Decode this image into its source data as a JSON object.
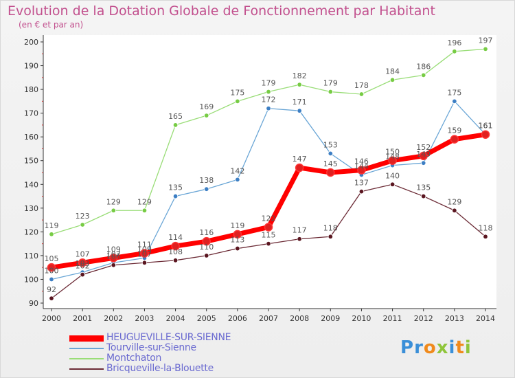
{
  "header": {
    "title": "Evolution de la Dotation Globale de Fonctionnement par Habitant",
    "subtitle": "(en € et par an)"
  },
  "brand": {
    "letters": [
      {
        "ch": "P",
        "color": "#3a8fd8"
      },
      {
        "ch": "r",
        "color": "#3a8fd8"
      },
      {
        "ch": "o",
        "color": "#f08a1c"
      },
      {
        "ch": "x",
        "color": "#8fc53a"
      },
      {
        "ch": "i",
        "color": "#3a8fd8"
      },
      {
        "ch": "t",
        "color": "#f08a1c"
      },
      {
        "ch": "i",
        "color": "#8fc53a"
      }
    ]
  },
  "chart_data": {
    "type": "line",
    "title": "Evolution de la Dotation Globale de Fonctionnement par Habitant",
    "subtitle": "(en € et par an)",
    "x": [
      "2000",
      "2001",
      "2002",
      "2003",
      "2004",
      "2005",
      "2006",
      "2007",
      "2008",
      "2009",
      "2010",
      "2011",
      "2012",
      "2013",
      "2014"
    ],
    "ylim": [
      90,
      200
    ],
    "yticks": [
      90,
      100,
      110,
      120,
      130,
      140,
      150,
      160,
      170,
      180,
      190,
      200
    ],
    "grid": false,
    "legend_position": "bottom-left",
    "series": [
      {
        "name": "HEUGUEVILLE-SUR-SIENNE",
        "color": "#ff0000",
        "marker_color": "#e02020",
        "emphasis": true,
        "values": [
          105,
          107,
          109,
          111,
          114,
          116,
          119,
          122,
          147,
          145,
          146,
          150,
          152,
          159,
          161
        ]
      },
      {
        "name": "Tourville-sur-Sienne",
        "color": "#6aa6d6",
        "marker_color": "#3d7fc4",
        "emphasis": false,
        "values": [
          100,
          103,
          107,
          109,
          135,
          138,
          142,
          172,
          171,
          153,
          144,
          148,
          149,
          175,
          161
        ]
      },
      {
        "name": "Montchaton",
        "color": "#99dd77",
        "marker_color": "#77cc44",
        "emphasis": false,
        "values": [
          119,
          123,
          129,
          129,
          165,
          169,
          175,
          179,
          182,
          179,
          178,
          184,
          186,
          196,
          197
        ]
      },
      {
        "name": "Bricqueville-la-Blouette",
        "color": "#6b2a35",
        "marker_color": "#5a1620",
        "emphasis": false,
        "values": [
          92,
          102,
          106,
          107,
          108,
          110,
          113,
          115,
          117,
          118,
          137,
          140,
          135,
          129,
          118
        ]
      }
    ]
  }
}
